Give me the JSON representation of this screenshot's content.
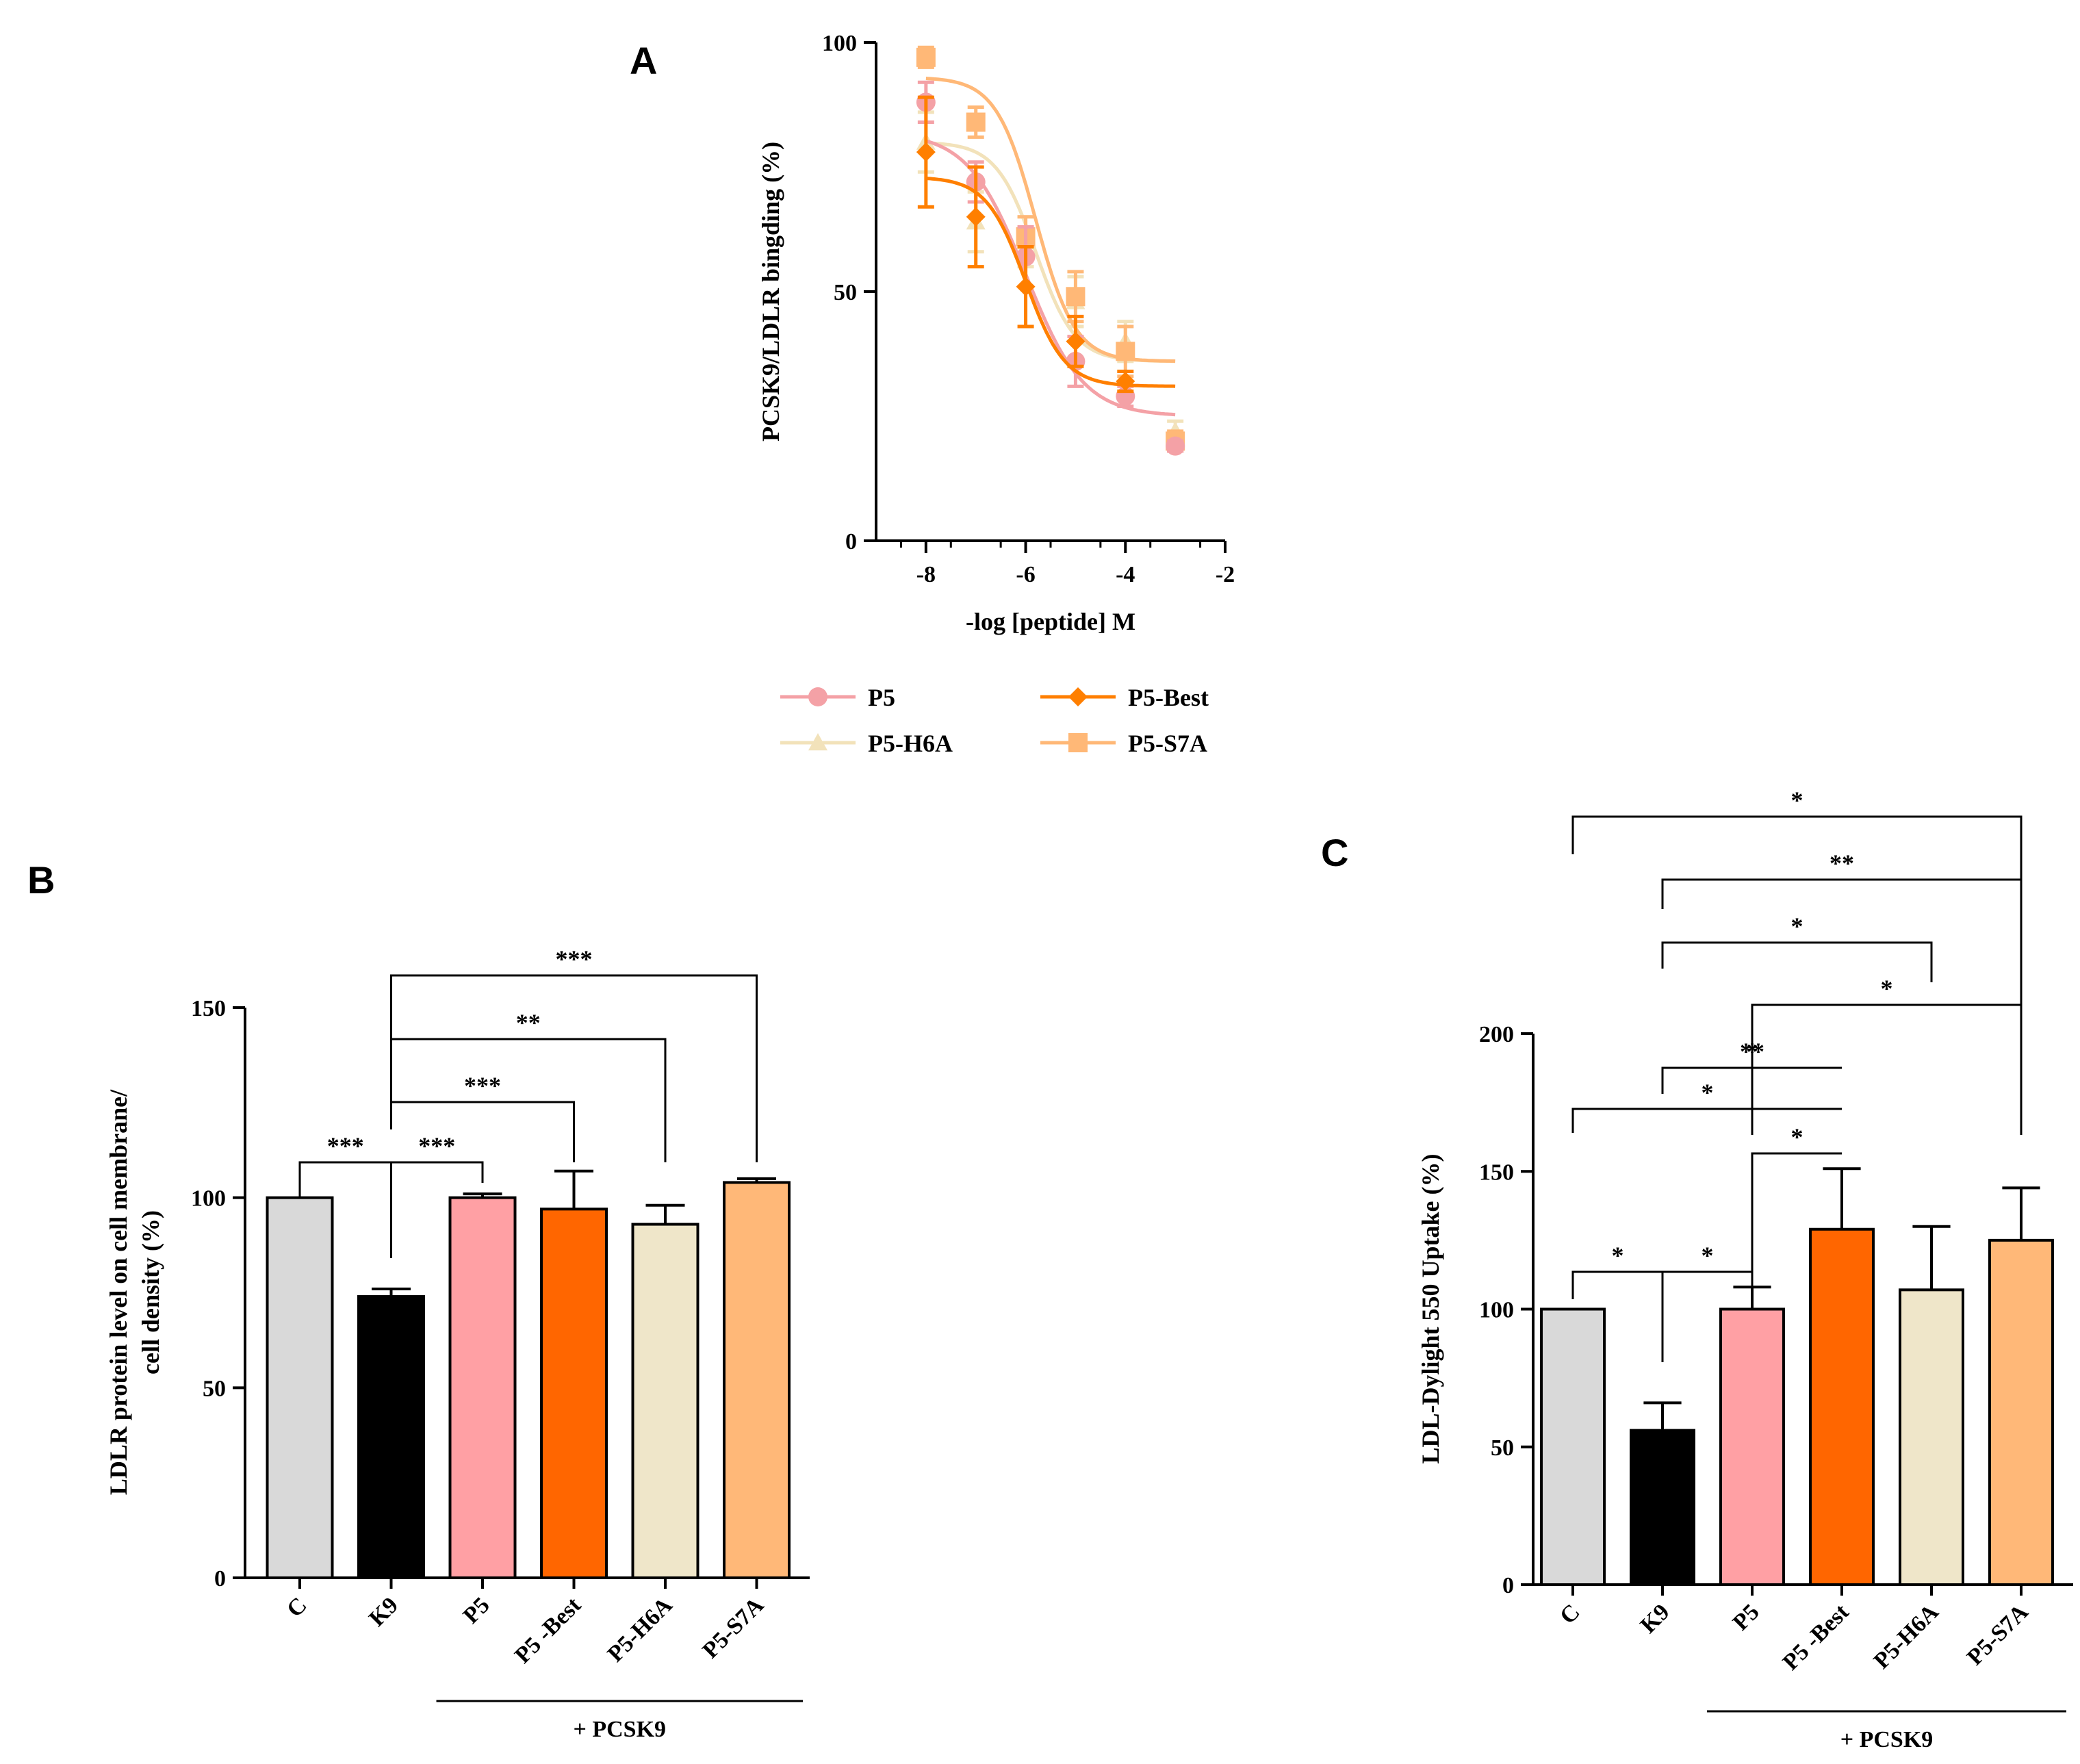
{
  "chart_data": [
    {
      "panel": "A",
      "type": "line",
      "xlabel": "-log [peptide] M",
      "ylabel": "PCSK9/LDLR bingding (%)",
      "xlim": [
        -9,
        -2
      ],
      "ylim": [
        0,
        100
      ],
      "xticks": [
        "-8",
        "-6",
        "-4",
        "-2"
      ],
      "yticks": [
        "0",
        "50",
        "100"
      ],
      "x": [
        -8,
        -7,
        -6,
        -5,
        -4,
        -3
      ],
      "legend_position": "bottom",
      "series": [
        {
          "name": "P5",
          "color": "#f4a1a6",
          "marker": "circle",
          "values": [
            88,
            72,
            57,
            36,
            29,
            19
          ],
          "errors": [
            4,
            4,
            6,
            5,
            2,
            1
          ],
          "fit": {
            "top": 82,
            "bottom": 25,
            "logec50": -6.0,
            "hill": 0.75
          }
        },
        {
          "name": "P5-Best",
          "color": "#ff7f00",
          "marker": "diamond",
          "values": [
            78,
            65,
            51,
            40,
            32,
            null
          ],
          "errors": [
            11,
            10,
            8,
            5,
            2,
            null
          ],
          "fit": {
            "top": 73,
            "bottom": 31,
            "logec50": -6.0,
            "hill": 1.1
          }
        },
        {
          "name": "P5-H6A",
          "color": "#f2e2ba",
          "marker": "triangle",
          "values": [
            80,
            64,
            60,
            48,
            40,
            22
          ],
          "errors": [
            6,
            6,
            5,
            5,
            4,
            2
          ],
          "fit": {
            "top": 80,
            "bottom": 36,
            "logec50": -5.8,
            "hill": 1.1
          }
        },
        {
          "name": "P5-S7A",
          "color": "#ffb877",
          "marker": "square",
          "values": [
            97,
            84,
            61,
            49,
            38,
            20
          ],
          "errors": [
            2,
            3,
            4,
            5,
            5,
            2
          ],
          "fit": {
            "top": 93,
            "bottom": 36,
            "logec50": -5.8,
            "hill": 1.1
          }
        }
      ]
    },
    {
      "panel": "B",
      "type": "bar",
      "ylabel_lines": [
        "LDLR protein level on cell membrane/",
        "cell density (%)"
      ],
      "ylim": [
        0,
        150
      ],
      "yticks": [
        "0",
        "50",
        "100",
        "150"
      ],
      "categories": [
        "C",
        "K9",
        "P5",
        "P5 -Best",
        "P5-H6A",
        "P5-S7A"
      ],
      "values": [
        100,
        74,
        100,
        97,
        93,
        104
      ],
      "errors": [
        0,
        2,
        1,
        10,
        5,
        1
      ],
      "colors": [
        "#d9d9d9",
        "#000000",
        "#ffa0a4",
        "#ff6600",
        "#efe6c9",
        "#ffb878"
      ],
      "group_label": "+ PCSK9",
      "group_span": [
        2,
        5
      ],
      "significance": [
        {
          "from": 0,
          "to": 1,
          "label": "***"
        },
        {
          "from": 1,
          "to": 2,
          "label": "***"
        },
        {
          "from": 1,
          "to": 3,
          "label": "***"
        },
        {
          "from": 1,
          "to": 4,
          "label": "**"
        },
        {
          "from": 1,
          "to": 5,
          "label": "***"
        }
      ]
    },
    {
      "panel": "C",
      "type": "bar",
      "ylabel": "LDL-Dylight 550 Uptake (%)",
      "ylim": [
        0,
        200
      ],
      "yticks": [
        "0",
        "50",
        "100",
        "150",
        "200"
      ],
      "categories": [
        "C",
        "K9",
        "P5",
        "P5 -Best",
        "P5-H6A",
        "P5-S7A"
      ],
      "values": [
        100,
        56,
        100,
        129,
        107,
        125
      ],
      "errors": [
        0,
        10,
        8,
        22,
        23,
        19
      ],
      "colors": [
        "#d9d9d9",
        "#000000",
        "#ffa0a4",
        "#ff6600",
        "#efe6c9",
        "#ffb878"
      ],
      "group_label": "+ PCSK9",
      "group_span": [
        2,
        5
      ],
      "significance": [
        {
          "from": 0,
          "to": 1,
          "label": "*"
        },
        {
          "from": 1,
          "to": 2,
          "label": "*"
        },
        {
          "from": 2,
          "to": 3,
          "label": "*"
        },
        {
          "from": 0,
          "to": 3,
          "label": "*"
        },
        {
          "from": 1,
          "to": 3,
          "label": "*"
        },
        {
          "from": 1,
          "to": 3,
          "label": "**"
        },
        {
          "from": 2,
          "to": 5,
          "label": "*"
        },
        {
          "from": 1,
          "to": 4,
          "label": "*"
        },
        {
          "from": 1,
          "to": 5,
          "label": "**"
        },
        {
          "from": 0,
          "to": 5,
          "label": "*"
        }
      ]
    }
  ]
}
